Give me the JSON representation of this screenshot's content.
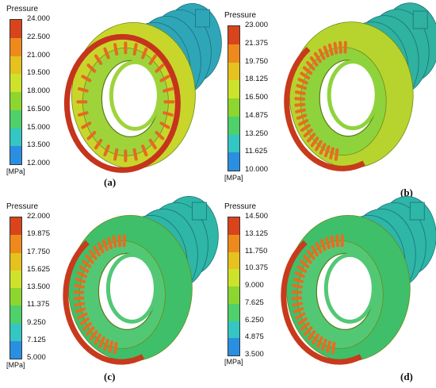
{
  "panels": [
    {
      "id": "a",
      "caption": "(a)",
      "legend": {
        "title": "Pressure",
        "unit": "[MPa]",
        "ticks": [
          "24.000",
          "22.500",
          "21.000",
          "19.500",
          "18.000",
          "16.500",
          "15.000",
          "13.500",
          "12.000"
        ],
        "colors": [
          "#d9441c",
          "#ee8a1c",
          "#e5c21d",
          "#cde22a",
          "#8cd62f",
          "#4ed06b",
          "#33c6c2",
          "#2a8fe0",
          "#2040d8"
        ]
      },
      "palette": {
        "body": "#c8d62c",
        "rear": "#2ea6b8",
        "ring": "#c5341c",
        "blades": "#e46a22",
        "inner": "#9ed43a"
      }
    },
    {
      "id": "b",
      "caption": "(b)",
      "legend": {
        "title": "Pressure",
        "unit": "[MPa]",
        "ticks": [
          "23.000",
          "21.375",
          "19.750",
          "18.125",
          "16.500",
          "14.875",
          "13.250",
          "11.625",
          "10.000"
        ],
        "colors": [
          "#d9441c",
          "#ee8a1c",
          "#e5c21d",
          "#cde22a",
          "#8cd62f",
          "#4ed06b",
          "#33c6c2",
          "#2a8fe0",
          "#2040d8"
        ]
      },
      "palette": {
        "body": "#b7d42e",
        "rear": "#2fb2a0",
        "ring": "#c83a1c",
        "blades": "#e56e22",
        "inner": "#8fd33c"
      }
    },
    {
      "id": "c",
      "caption": "(c)",
      "legend": {
        "title": "Pressure",
        "unit": "[MPa]",
        "ticks": [
          "22.000",
          "19.875",
          "17.750",
          "15.625",
          "13.500",
          "11.375",
          "9.250",
          "7.125",
          "5.000"
        ],
        "colors": [
          "#d9441c",
          "#ee8a1c",
          "#e5c21d",
          "#cde22a",
          "#8cd62f",
          "#4ed06b",
          "#33c6c2",
          "#2a8fe0",
          "#2040d8"
        ]
      },
      "palette": {
        "body": "#3fbf6a",
        "rear": "#2eb6a6",
        "ring": "#c83a1c",
        "blades": "#e56e22",
        "inner": "#52c875"
      }
    },
    {
      "id": "d",
      "caption": "(d)",
      "legend": {
        "title": "Pressure",
        "unit": "[MPa]",
        "ticks": [
          "14.500",
          "13.125",
          "11.750",
          "10.375",
          "9.000",
          "7.625",
          "6.250",
          "4.875",
          "3.500"
        ],
        "colors": [
          "#d9441c",
          "#ee8a1c",
          "#e5c21d",
          "#cde22a",
          "#8cd62f",
          "#4ed06b",
          "#33c6c2",
          "#2a8fe0",
          "#2040d8"
        ]
      },
      "palette": {
        "body": "#3fbf6a",
        "rear": "#2eb6a6",
        "ring": "#c83a1c",
        "blades": "#e56e22",
        "inner": "#52c875"
      }
    }
  ]
}
